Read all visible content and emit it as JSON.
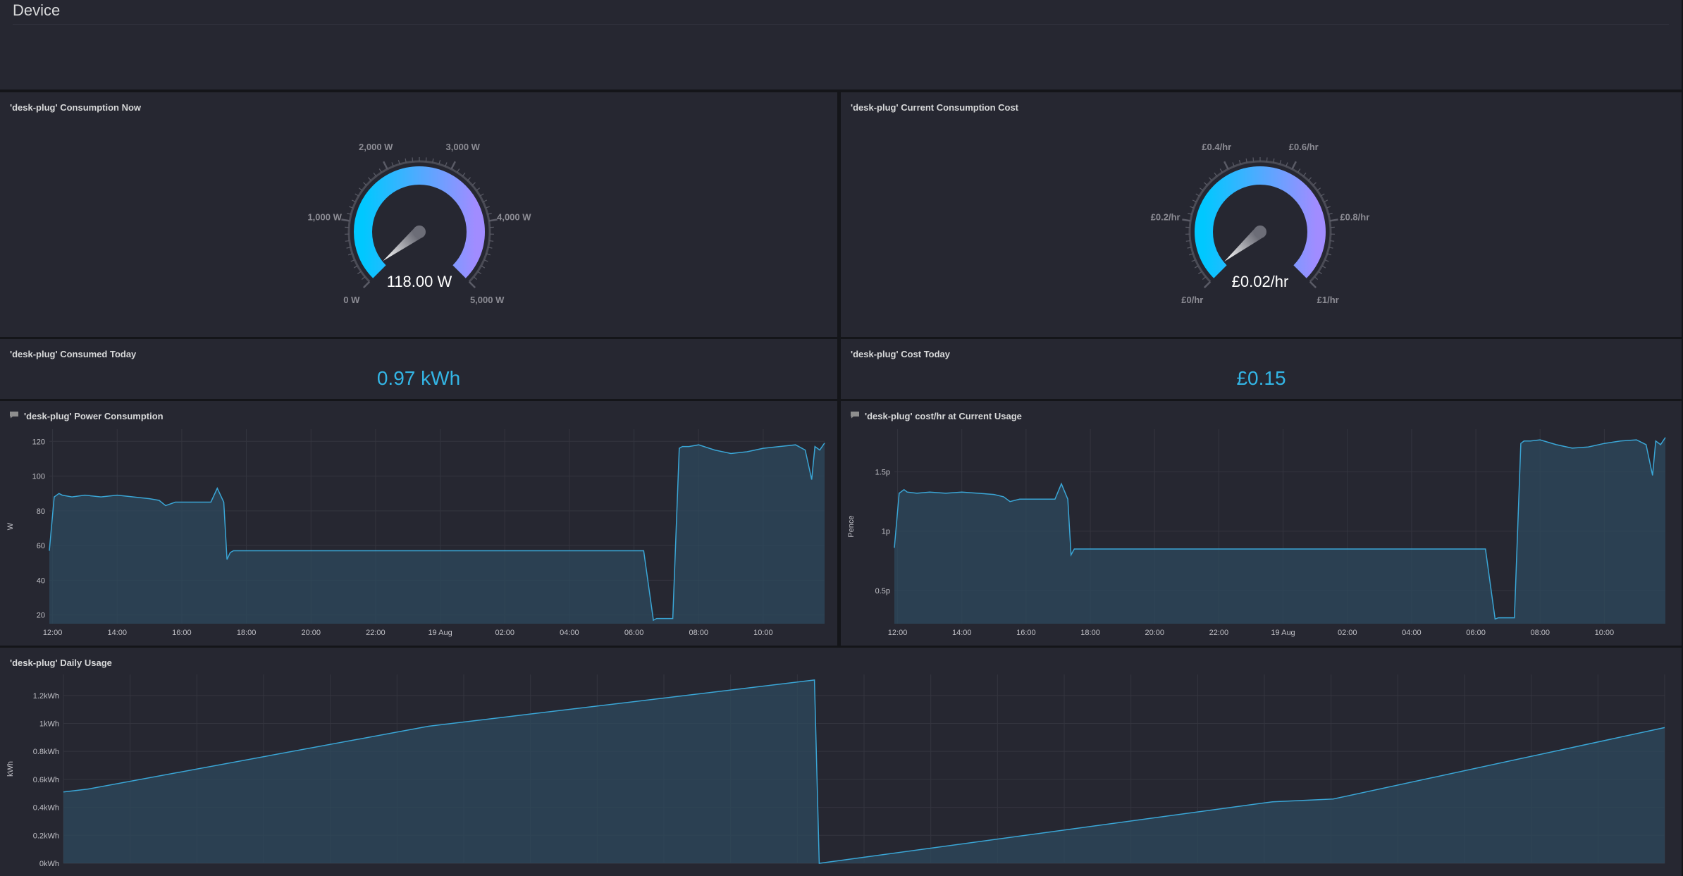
{
  "row": {
    "title": "Device"
  },
  "panels": {
    "consumption_now": {
      "title": "'desk-plug' Consumption Now",
      "value_text": "118.00 W",
      "value": 118,
      "min": 0,
      "max": 5000,
      "tick_labels": [
        "0 W",
        "1,000 W",
        "2,000 W",
        "3,000 W",
        "4,000 W",
        "5,000 W"
      ]
    },
    "consumption_cost": {
      "title": "'desk-plug' Current Consumption Cost",
      "value_text": "£0.02/hr",
      "value": 0.02,
      "min": 0,
      "max": 1,
      "tick_labels": [
        "£0/hr",
        "£0.2/hr",
        "£0.4/hr",
        "£0.6/hr",
        "£0.8/hr",
        "£1/hr"
      ]
    },
    "consumed_today": {
      "title": "'desk-plug' Consumed Today",
      "value_text": "0.97 kWh"
    },
    "cost_today": {
      "title": "'desk-plug' Cost Today",
      "value_text": "£0.15"
    },
    "power_consumption": {
      "title": "'desk-plug' Power Consumption"
    },
    "cost_hr": {
      "title": "'desk-plug' cost/hr at Current Usage"
    },
    "daily_usage": {
      "title": "'desk-plug' Daily Usage"
    }
  },
  "colors": {
    "gauge_start": "#00c8ff",
    "gauge_end": "#a18cff",
    "series_line": "#3aa6d6",
    "series_fill": "#2e4a5e",
    "stat_value": "#33b5e5"
  },
  "chart_data": [
    {
      "type": "area",
      "panel": "power_consumption",
      "ylabel": "W",
      "ylim": [
        15,
        127
      ],
      "yticks": [
        20,
        40,
        60,
        80,
        100,
        120
      ],
      "xlim": [
        11.9,
        35.9
      ],
      "xticks": [
        {
          "x": 12,
          "label": "12:00"
        },
        {
          "x": 14,
          "label": "14:00"
        },
        {
          "x": 16,
          "label": "16:00"
        },
        {
          "x": 18,
          "label": "18:00"
        },
        {
          "x": 20,
          "label": "20:00"
        },
        {
          "x": 22,
          "label": "22:00"
        },
        {
          "x": 24,
          "label": "19 Aug"
        },
        {
          "x": 26,
          "label": "02:00"
        },
        {
          "x": 28,
          "label": "04:00"
        },
        {
          "x": 30,
          "label": "06:00"
        },
        {
          "x": 32,
          "label": "08:00"
        },
        {
          "x": 34,
          "label": "10:00"
        }
      ],
      "series": [
        {
          "x": [
            11.9,
            12.05,
            12.2,
            12.3,
            12.6,
            13.0,
            13.5,
            14.0,
            14.5,
            15.0,
            15.3,
            15.5,
            15.8,
            16.2,
            16.6,
            16.9,
            17.1,
            17.3,
            17.4,
            17.5,
            17.6,
            17.8,
            18.5,
            19.5,
            20.5,
            21.5,
            22.5,
            23.5,
            24.5,
            25.5,
            26.5,
            27.5,
            28.5,
            29.5,
            30.3,
            30.6,
            30.7,
            31.0,
            31.2,
            31.4,
            31.5,
            31.7,
            32.0,
            32.5,
            33.0,
            33.5,
            34.0,
            34.5,
            35.0,
            35.3,
            35.5,
            35.6,
            35.75,
            35.9
          ],
          "y": [
            57,
            88,
            90,
            89,
            88,
            89,
            88,
            89,
            88,
            87,
            86,
            83,
            85,
            85,
            85,
            85,
            93,
            85,
            52,
            56,
            57,
            57,
            57,
            57,
            57,
            57,
            57,
            57,
            57,
            57,
            57,
            57,
            57,
            57,
            57,
            17,
            18,
            18,
            18,
            116,
            117,
            117,
            118,
            115,
            113,
            114,
            116,
            117,
            118,
            115,
            98,
            117,
            115,
            119
          ]
        }
      ]
    },
    {
      "type": "area",
      "panel": "cost_hr",
      "ylabel": "Pence",
      "ylim": [
        0.22,
        1.86
      ],
      "yticks": [
        0.5,
        1,
        1.5
      ],
      "ytick_labels": [
        "0.5p",
        "1p",
        "1.5p"
      ],
      "xlim": [
        11.9,
        35.9
      ],
      "xticks": [
        {
          "x": 12,
          "label": "12:00"
        },
        {
          "x": 14,
          "label": "14:00"
        },
        {
          "x": 16,
          "label": "16:00"
        },
        {
          "x": 18,
          "label": "18:00"
        },
        {
          "x": 20,
          "label": "20:00"
        },
        {
          "x": 22,
          "label": "22:00"
        },
        {
          "x": 24,
          "label": "19 Aug"
        },
        {
          "x": 26,
          "label": "02:00"
        },
        {
          "x": 28,
          "label": "04:00"
        },
        {
          "x": 30,
          "label": "06:00"
        },
        {
          "x": 32,
          "label": "08:00"
        },
        {
          "x": 34,
          "label": "10:00"
        }
      ],
      "series": [
        {
          "x": [
            11.9,
            12.05,
            12.2,
            12.3,
            12.6,
            13.0,
            13.5,
            14.0,
            14.5,
            15.0,
            15.3,
            15.5,
            15.8,
            16.2,
            16.6,
            16.9,
            17.1,
            17.3,
            17.4,
            17.5,
            17.6,
            17.8,
            18.5,
            19.5,
            20.5,
            21.5,
            22.5,
            23.5,
            24.5,
            25.5,
            26.5,
            27.5,
            28.5,
            29.5,
            30.3,
            30.6,
            30.7,
            31.0,
            31.2,
            31.4,
            31.5,
            31.7,
            32.0,
            32.5,
            33.0,
            33.5,
            34.0,
            34.5,
            35.0,
            35.3,
            35.5,
            35.6,
            35.75,
            35.9
          ],
          "y": [
            0.86,
            1.32,
            1.35,
            1.33,
            1.32,
            1.33,
            1.32,
            1.33,
            1.32,
            1.31,
            1.29,
            1.25,
            1.27,
            1.27,
            1.27,
            1.27,
            1.4,
            1.27,
            0.8,
            0.85,
            0.85,
            0.85,
            0.85,
            0.85,
            0.85,
            0.85,
            0.85,
            0.85,
            0.85,
            0.85,
            0.85,
            0.85,
            0.85,
            0.85,
            0.85,
            0.26,
            0.27,
            0.27,
            0.27,
            1.74,
            1.76,
            1.76,
            1.77,
            1.73,
            1.7,
            1.71,
            1.74,
            1.76,
            1.77,
            1.73,
            1.47,
            1.76,
            1.73,
            1.79
          ]
        }
      ]
    },
    {
      "type": "area",
      "panel": "daily_usage",
      "ylabel": "kWh",
      "ylim": [
        0,
        1.35
      ],
      "yticks": [
        0,
        0.2,
        0.4,
        0.6,
        0.8,
        1,
        1.2
      ],
      "ytick_labels": [
        "0kWh",
        "0.2kWh",
        "0.4kWh",
        "0.6kWh",
        "0.8kWh",
        "1kWh",
        "1.2kWh"
      ],
      "xlim": [
        0,
        100
      ],
      "series": [
        {
          "x": [
            0,
            1.5,
            22.8,
            46.9,
            47.2,
            75.5,
            79.3,
            100
          ],
          "y": [
            0.51,
            0.53,
            0.98,
            1.31,
            0,
            0.44,
            0.46,
            0.97
          ]
        }
      ]
    }
  ]
}
